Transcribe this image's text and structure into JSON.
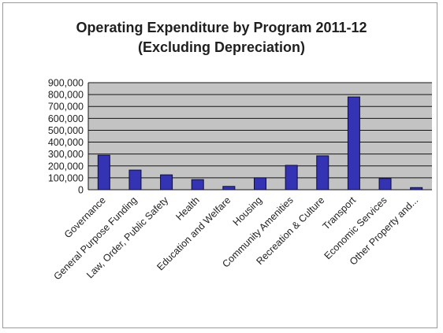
{
  "chart_data": {
    "type": "bar",
    "title": "Operating Expenditure by Program 2011-12",
    "subtitle": "(Excluding Depreciation)",
    "xlabel": "",
    "ylabel": "",
    "ylim": [
      0,
      900000
    ],
    "yticks": [
      "900,000",
      "800,000",
      "700,000",
      "600,000",
      "500,000",
      "400,000",
      "300,000",
      "200,000",
      "100,000",
      "0"
    ],
    "ytick_values": [
      900000,
      800000,
      700000,
      600000,
      500000,
      400000,
      300000,
      200000,
      100000,
      0
    ],
    "grid": true,
    "legend": "none",
    "categories": [
      "Governance",
      "General Purpose Funding",
      "Law, Order, Public Safety",
      "Health",
      "Education and Welfare",
      "Housing",
      "Community Amenities",
      "Recreation & Culture",
      "Transport",
      "Economic Services",
      "Other Property and..."
    ],
    "values": [
      290000,
      165000,
      125000,
      85000,
      28000,
      100000,
      205000,
      285000,
      780000,
      95000,
      18000
    ],
    "colors": {
      "bar_fill": "#3333b3",
      "bar_stroke": "#0d0d3a",
      "plot_bg": "#c3c3c3",
      "gridline": "#141414"
    }
  }
}
